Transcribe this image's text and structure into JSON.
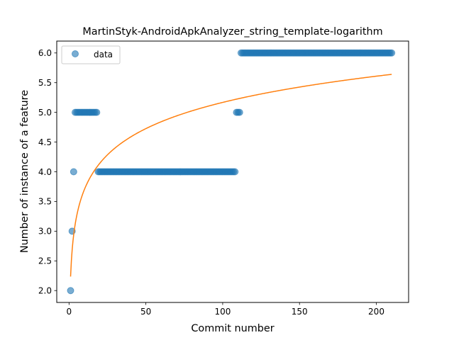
{
  "chart_data": {
    "type": "scatter",
    "title": "MartinStyk-AndroidApkAnalyzer_string_template-logarithm",
    "xlabel": "Commit number",
    "ylabel": "Number of instance of a feature",
    "xlim": [
      -8,
      221
    ],
    "ylim": [
      1.8,
      6.2
    ],
    "xticks": [
      0,
      50,
      100,
      150,
      200
    ],
    "yticks": [
      "2.0",
      "2.5",
      "3.0",
      "3.5",
      "4.0",
      "4.5",
      "5.0",
      "5.5",
      "6.0"
    ],
    "grid": false,
    "legend": {
      "position": "top-left",
      "entries": [
        "data"
      ]
    },
    "series": [
      {
        "name": "data",
        "kind": "scatter",
        "color": "#1f77b4",
        "segments": [
          {
            "x_from": 1,
            "x_to": 1,
            "y": 2
          },
          {
            "x_from": 2,
            "x_to": 2,
            "y": 3
          },
          {
            "x_from": 3,
            "x_to": 3,
            "y": 4
          },
          {
            "x_from": 4,
            "x_to": 18,
            "y": 5
          },
          {
            "x_from": 19,
            "x_to": 108,
            "y": 4
          },
          {
            "x_from": 109,
            "x_to": 111,
            "y": 5
          },
          {
            "x_from": 112,
            "x_to": 210,
            "y": 6
          }
        ]
      },
      {
        "kind": "line",
        "color": "#ff7f0e",
        "fit": "logarithmic",
        "a": 2.2361,
        "b": 0.6366,
        "x_from": 1,
        "x_to": 210
      }
    ]
  }
}
